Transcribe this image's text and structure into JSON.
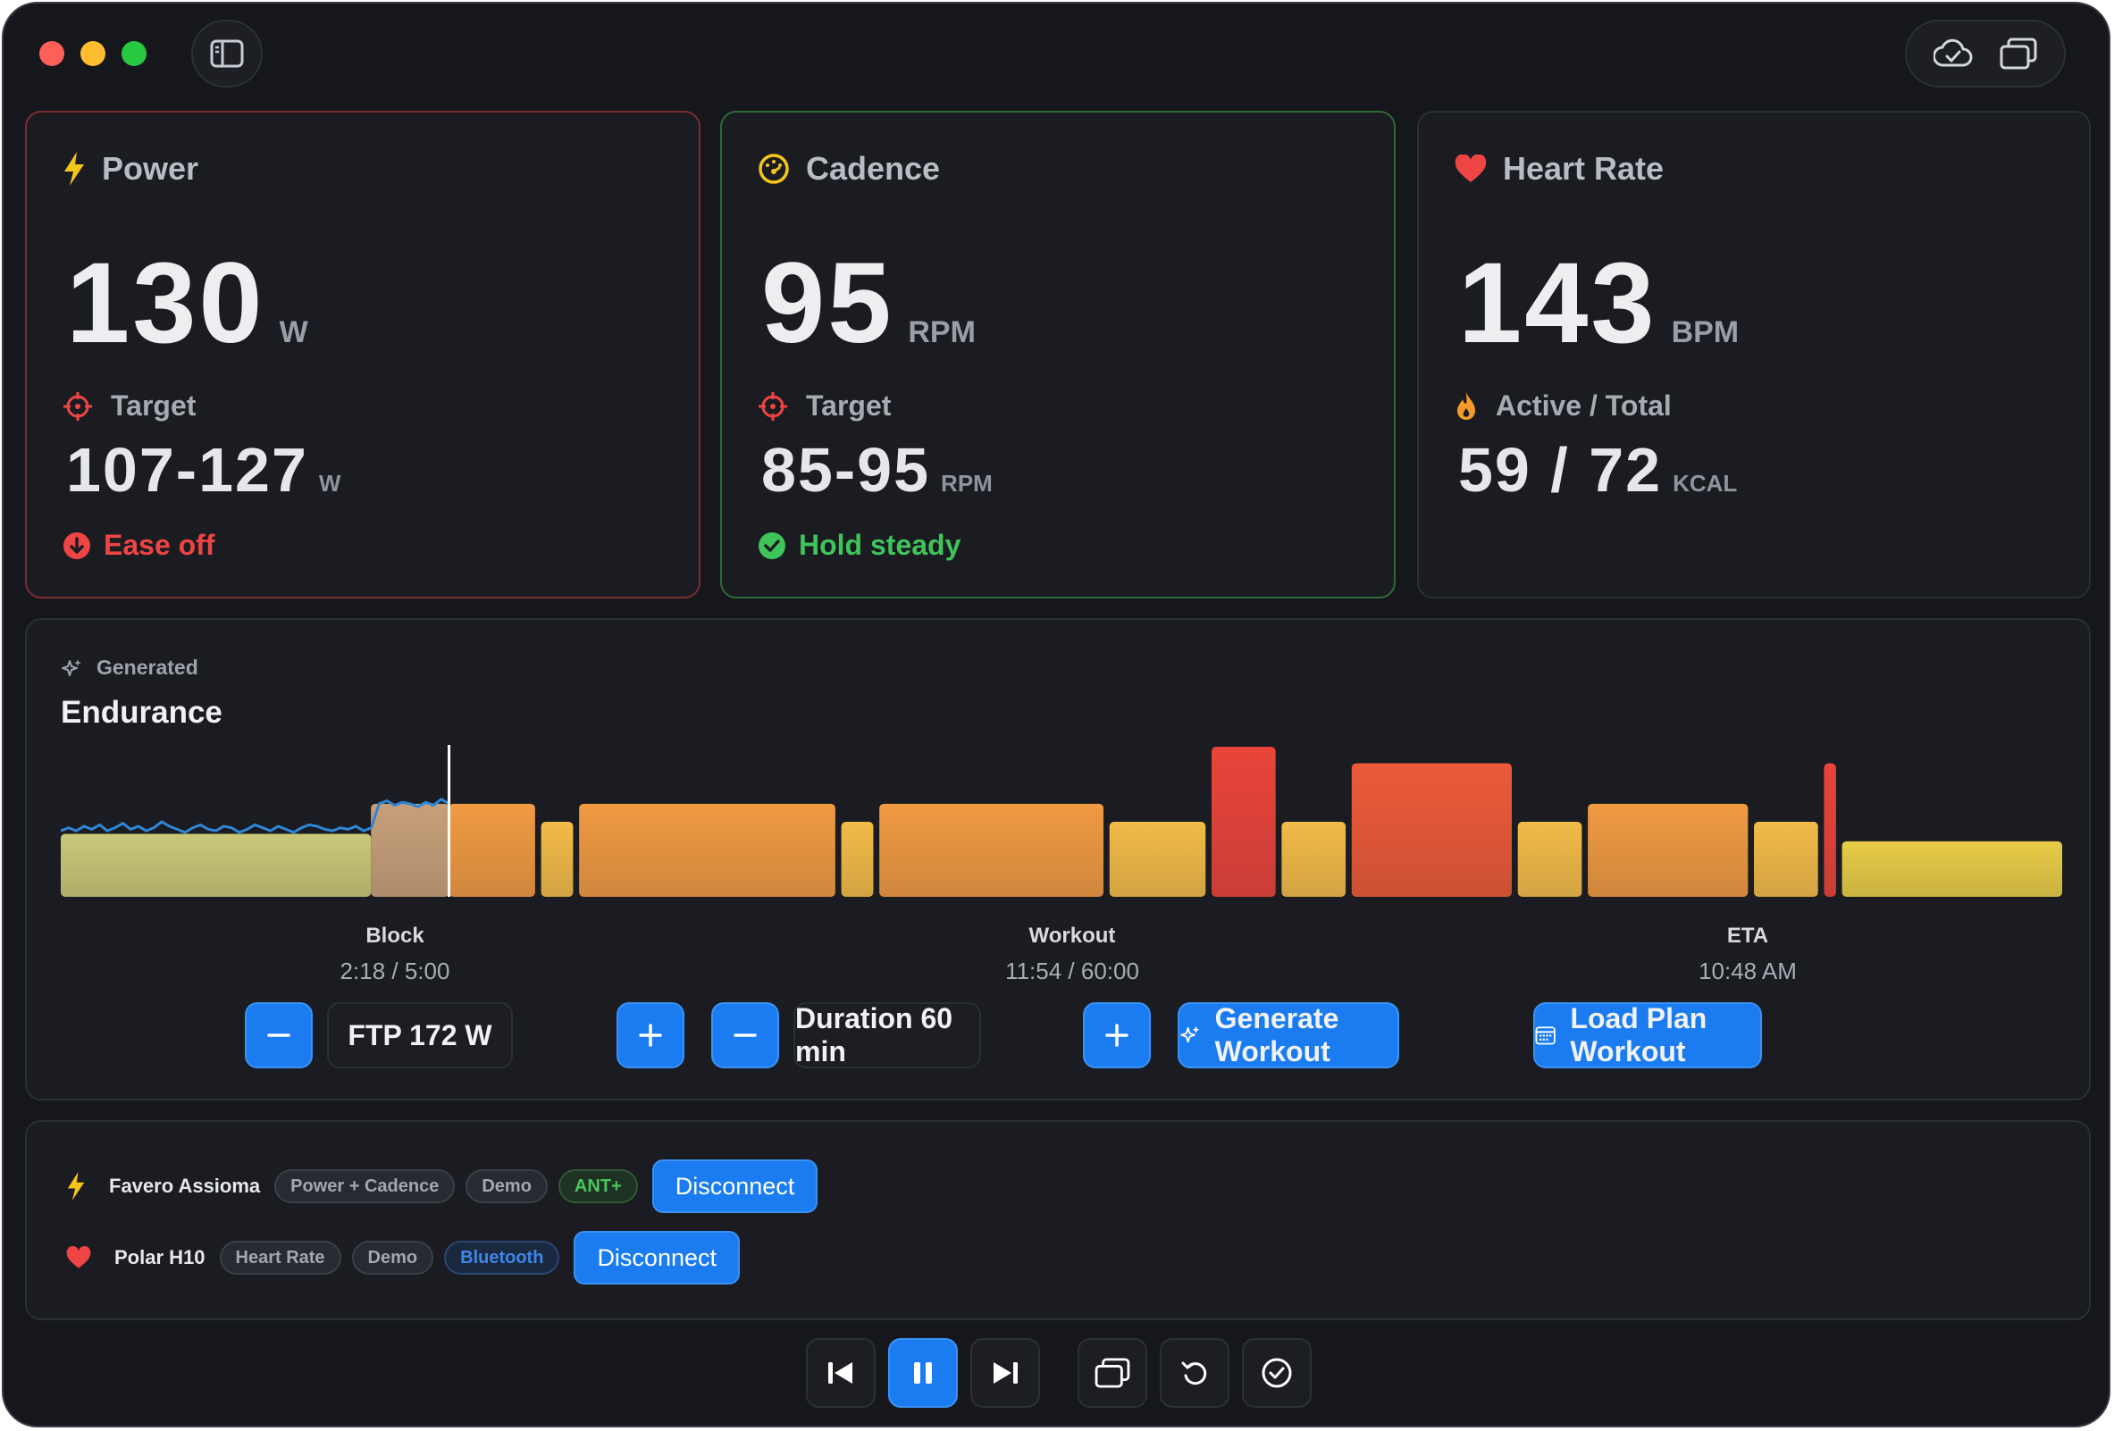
{
  "colors": {
    "accent": "#1a7cf0",
    "danger": "#ef4444",
    "success": "#3fc45a",
    "power_icon": "#f5c518",
    "cadence_icon": "#f5c518",
    "heart": "#ef4444",
    "flame": "#f59a2b"
  },
  "titlebar": {
    "icons": [
      "sidebar-toggle-icon",
      "cloud-check-icon",
      "windows-icon"
    ]
  },
  "cards": {
    "power": {
      "label": "Power",
      "value": "130",
      "unit": "W",
      "target_label": "Target",
      "target_value": "107-127",
      "target_unit": "W",
      "status": "Ease off",
      "status_color": "#ef4444"
    },
    "cadence": {
      "label": "Cadence",
      "value": "95",
      "unit": "RPM",
      "target_label": "Target",
      "target_value": "85-95",
      "target_unit": "RPM",
      "status": "Hold steady",
      "status_color": "#3fc45a"
    },
    "heart_rate": {
      "label": "Heart Rate",
      "value": "143",
      "unit": "BPM",
      "energy_label": "Active / Total",
      "energy_value": "59 / 72",
      "energy_unit": "KCAL"
    }
  },
  "workout": {
    "generated_label": "Generated",
    "title": "Endurance",
    "progress_fraction": 0.194,
    "segments": [
      {
        "start": 0.0,
        "end": 0.155,
        "level": 0.42,
        "color": "#c9c878"
      },
      {
        "start": 0.155,
        "end": 0.194,
        "level": 0.62,
        "color": "#c7a07a"
      },
      {
        "start": 0.194,
        "end": 0.237,
        "level": 0.62,
        "color": "#f09a42"
      },
      {
        "start": 0.24,
        "end": 0.256,
        "level": 0.5,
        "color": "#f2bb48"
      },
      {
        "start": 0.259,
        "end": 0.387,
        "level": 0.62,
        "color": "#f09a42"
      },
      {
        "start": 0.39,
        "end": 0.406,
        "level": 0.5,
        "color": "#f2bb48"
      },
      {
        "start": 0.409,
        "end": 0.521,
        "level": 0.62,
        "color": "#f09a42"
      },
      {
        "start": 0.524,
        "end": 0.572,
        "level": 0.5,
        "color": "#f2bb48"
      },
      {
        "start": 0.575,
        "end": 0.607,
        "level": 1.0,
        "color": "#e9443a"
      },
      {
        "start": 0.61,
        "end": 0.642,
        "level": 0.5,
        "color": "#f2bb48"
      },
      {
        "start": 0.645,
        "end": 0.725,
        "level": 0.89,
        "color": "#ec5a38"
      },
      {
        "start": 0.728,
        "end": 0.76,
        "level": 0.5,
        "color": "#f2bb48"
      },
      {
        "start": 0.763,
        "end": 0.843,
        "level": 0.62,
        "color": "#f09a42"
      },
      {
        "start": 0.846,
        "end": 0.878,
        "level": 0.5,
        "color": "#f2bb48"
      },
      {
        "start": 0.881,
        "end": 0.887,
        "level": 0.89,
        "color": "#e9443a"
      },
      {
        "start": 0.89,
        "end": 1.0,
        "level": 0.37,
        "color": "#e8cc46"
      }
    ],
    "power_trace": [
      0.44,
      0.46,
      0.44,
      0.47,
      0.45,
      0.48,
      0.44,
      0.46,
      0.49,
      0.45,
      0.47,
      0.44,
      0.46,
      0.5,
      0.47,
      0.45,
      0.43,
      0.46,
      0.48,
      0.45,
      0.44,
      0.47,
      0.46,
      0.43,
      0.45,
      0.48,
      0.46,
      0.44,
      0.47,
      0.45,
      0.43,
      0.46,
      0.48,
      0.47,
      0.45,
      0.44,
      0.46,
      0.45,
      0.47,
      0.44,
      0.46,
      0.62,
      0.64,
      0.61,
      0.63,
      0.62,
      0.6,
      0.63,
      0.61,
      0.65,
      0.62
    ],
    "stats": [
      {
        "label": "Block",
        "value": "2:18 / 5:00"
      },
      {
        "label": "Workout",
        "value": "11:54 / 60:00"
      },
      {
        "label": "ETA",
        "value": "10:48 AM"
      }
    ],
    "ftp_label": "FTP 172 W",
    "duration_label": "Duration 60 min",
    "generate_label": "Generate Workout",
    "load_label": "Load Plan Workout"
  },
  "devices": [
    {
      "name": "Favero Assioma",
      "icon": "bolt-icon",
      "tags": [
        {
          "text": "Power + Cadence",
          "kind": "plain"
        },
        {
          "text": "Demo",
          "kind": "plain"
        },
        {
          "text": "ANT+",
          "kind": "ant"
        }
      ],
      "action": "Disconnect"
    },
    {
      "name": "Polar H10",
      "icon": "heart-icon",
      "tags": [
        {
          "text": "Heart Rate",
          "kind": "plain"
        },
        {
          "text": "Demo",
          "kind": "plain"
        },
        {
          "text": "Bluetooth",
          "kind": "bt"
        }
      ],
      "action": "Disconnect"
    }
  ],
  "transport": {
    "buttons": [
      "skip-back-icon",
      "pause-icon",
      "skip-forward-icon",
      "windows-icon",
      "restart-icon",
      "finish-check-icon"
    ],
    "active": "pause-icon"
  }
}
